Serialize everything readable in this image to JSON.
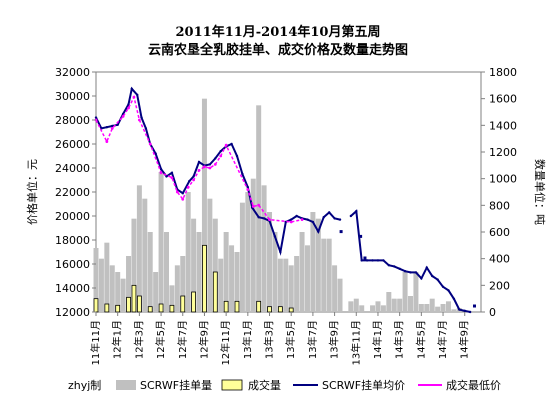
{
  "chart_data": {
    "type": "bar+line (dual axis)",
    "title_line1": "2011年11月-2014年10月第五周",
    "title_line2": "云南农垦全乳胶挂单、成交价格及数量走势图",
    "ylabel_left": "价格单位：元",
    "ylabel_right": "数量单位：吨",
    "ylim_left": [
      12000,
      32000
    ],
    "ylim_right": [
      0,
      1800
    ],
    "yticks_left": [
      "12000",
      "14000",
      "16000",
      "18000",
      "20000",
      "22000",
      "24000",
      "26000",
      "28000",
      "30000",
      "32000"
    ],
    "yticks_right": [
      "0",
      "200",
      "400",
      "600",
      "800",
      "1000",
      "1200",
      "1400",
      "1600",
      "1800"
    ],
    "x_categories": [
      "11年11月",
      "12年1月",
      "12年3月",
      "12年5月",
      "12年7月",
      "12年9月",
      "12年11月",
      "13年1月",
      "13年3月",
      "13年5月",
      "13年7月",
      "13年9月",
      "13年11月",
      "14年1月",
      "14年3月",
      "14年5月",
      "14年7月",
      "14年9月"
    ],
    "legend": {
      "author": "zhyj制",
      "bars_list": "SCRWF挂单量",
      "bars_deal": "成交量",
      "line_avg": "SCRWF挂单均价",
      "line_low": "成交最低价"
    },
    "colors": {
      "bars_list": "#c0c0c0",
      "bars_deal": "#ffff99",
      "bars_deal_edge": "#000000",
      "line_avg": "#000080",
      "line_low": "#ff00ff",
      "plot_border": "#808080"
    },
    "series_avg_price": {
      "name": "SCRWF挂单均价",
      "month_index": [
        0,
        0.5,
        1,
        1.5,
        2,
        2.5,
        3,
        3.3,
        3.8,
        4.2,
        4.6,
        5,
        5.5,
        6,
        6.5,
        7,
        7.5,
        8,
        8.6,
        9,
        9.5,
        10,
        10.5,
        11,
        11.5,
        12,
        12.5,
        13,
        13.5,
        14,
        14.4,
        15,
        15.5,
        16,
        16.5,
        17,
        17.5,
        18,
        18.5,
        19,
        19.5,
        20,
        20.5,
        21,
        21.5,
        22,
        22.5,
        23,
        23.5,
        24,
        24.5,
        25,
        25.5,
        26,
        26.5,
        27,
        27.5,
        28,
        28.5,
        29,
        29.5,
        30,
        30.5,
        31,
        31.5,
        32,
        32.5,
        33,
        33.5,
        34,
        34.5
      ],
      "values": [
        28200,
        27300,
        27400,
        27500,
        27600,
        28500,
        29300,
        30600,
        30100,
        28200,
        27300,
        26000,
        25200,
        23900,
        23300,
        23600,
        22200,
        21900,
        22900,
        23300,
        24500,
        24200,
        24300,
        24800,
        25400,
        25800,
        26000,
        25000,
        23500,
        22400,
        20700,
        19900,
        19800,
        19600,
        18300,
        17000,
        19500,
        19700,
        20000,
        19800,
        19700,
        19500,
        18700,
        19900,
        20300,
        19800,
        19700,
        null,
        20000,
        20400,
        16300,
        16300,
        16300,
        16300,
        16300,
        15900,
        15800,
        15600,
        15400,
        15300,
        15300,
        14800,
        15700,
        15000,
        14700,
        14100,
        13800,
        13100,
        12200,
        12100,
        12000
      ]
    },
    "series_low_price": {
      "name": "成交最低价",
      "month_index": [
        0,
        1,
        1.5,
        2.5,
        3,
        3.5,
        4,
        5,
        6,
        7,
        7.5,
        8,
        8.5,
        9,
        9.5,
        10,
        10.5,
        11,
        11.5,
        12,
        14,
        14.5,
        15,
        16,
        18,
        19
      ],
      "values": [
        28000,
        26200,
        27300,
        28300,
        29000,
        29900,
        28000,
        26000,
        23600,
        23200,
        22000,
        21400,
        22400,
        23000,
        23800,
        24100,
        24000,
        24300,
        25000,
        25900,
        22200,
        20800,
        20900,
        19700,
        19500,
        19700
      ]
    },
    "series_list_volume": {
      "name": "SCRWF挂单量",
      "month_index": [
        0,
        0.5,
        1,
        1.5,
        2,
        2.5,
        3,
        3.5,
        4,
        4.5,
        5,
        5.5,
        6,
        6.5,
        7,
        7.5,
        8,
        8.5,
        9,
        9.5,
        10,
        10.5,
        11,
        11.5,
        12,
        12.5,
        13,
        13.5,
        14,
        14.5,
        15,
        15.5,
        16,
        16.5,
        17,
        17.5,
        18,
        18.5,
        19,
        19.5,
        20,
        20.5,
        21,
        21.5,
        22,
        22.5,
        23,
        23.5,
        24,
        24.5,
        25,
        25.5,
        26,
        26.5,
        27,
        27.5,
        28,
        28.5,
        29,
        29.5,
        30,
        30.5,
        31,
        31.5,
        32,
        32.5,
        33,
        33.5,
        34,
        34.5
      ],
      "values": [
        480,
        400,
        520,
        350,
        300,
        250,
        420,
        700,
        950,
        850,
        600,
        300,
        1050,
        600,
        200,
        350,
        420,
        900,
        700,
        600,
        1600,
        850,
        700,
        400,
        600,
        500,
        450,
        820,
        900,
        1000,
        1550,
        950,
        750,
        600,
        400,
        400,
        350,
        420,
        600,
        500,
        750,
        700,
        550,
        550,
        350,
        250,
        0,
        80,
        100,
        50,
        0,
        50,
        80,
        50,
        150,
        100,
        100,
        300,
        120,
        300,
        60,
        60,
        100,
        40,
        60,
        80,
        20,
        30,
        0,
        0
      ]
    },
    "series_deal_volume": {
      "name": "成交量",
      "month_index": [
        0,
        1,
        2,
        3,
        3.5,
        4,
        5,
        6,
        7,
        8,
        9,
        10,
        11,
        12,
        13,
        15,
        16,
        17,
        18
      ],
      "values": [
        100,
        60,
        50,
        110,
        200,
        120,
        40,
        60,
        50,
        120,
        150,
        500,
        300,
        80,
        80,
        80,
        40,
        40,
        30
      ]
    },
    "isolated_avg_points": {
      "month_index": [
        22.6,
        24.4,
        24.8,
        34.9
      ],
      "values": [
        18700,
        18300,
        16500,
        12500
      ]
    }
  }
}
